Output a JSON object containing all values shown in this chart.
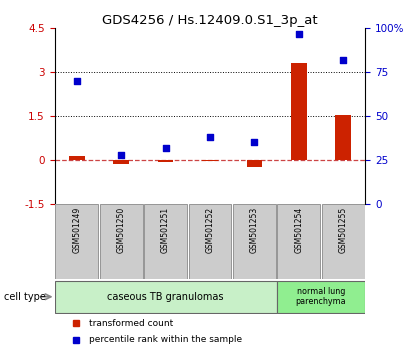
{
  "title": "GDS4256 / Hs.12409.0.S1_3p_at",
  "samples": [
    "GSM501249",
    "GSM501250",
    "GSM501251",
    "GSM501252",
    "GSM501253",
    "GSM501254",
    "GSM501255"
  ],
  "transformed_count": [
    0.15,
    -0.15,
    -0.08,
    -0.05,
    -0.25,
    3.3,
    1.55
  ],
  "percentile_rank": [
    70,
    28,
    32,
    38,
    35,
    97,
    82
  ],
  "ylim_left": [
    -1.5,
    4.5
  ],
  "ylim_right": [
    0,
    100
  ],
  "yticks_left": [
    -1.5,
    0,
    1.5,
    3,
    4.5
  ],
  "yticks_right": [
    0,
    25,
    50,
    75,
    100
  ],
  "yticklabels_right": [
    "0",
    "25",
    "50",
    "75",
    "100%"
  ],
  "hlines": [
    3.0,
    1.5
  ],
  "bar_color": "#cc2200",
  "dot_color": "#0000cc",
  "dashed_color": "#cc4444",
  "cell_type_groups": [
    {
      "label": "caseous TB granulomas",
      "indices": [
        0,
        1,
        2,
        3,
        4
      ],
      "color": "#c8f0c8"
    },
    {
      "label": "normal lung\nparenchyma",
      "indices": [
        5,
        6
      ],
      "color": "#90ee90"
    }
  ],
  "legend_bar_label": "transformed count",
  "legend_dot_label": "percentile rank within the sample",
  "cell_type_label": "cell type",
  "background_color": "#ffffff",
  "left_tick_color": "#cc0000",
  "right_tick_color": "#0000cc",
  "xtick_bg_color": "#cccccc",
  "xtick_border_color": "#888888"
}
